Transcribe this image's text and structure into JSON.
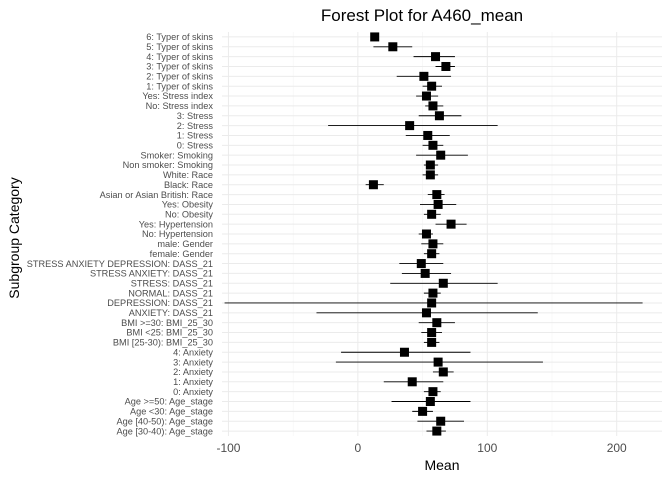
{
  "chart_data": {
    "type": "scatter",
    "subtype": "forest-plot",
    "title": "Forest Plot for A460_mean",
    "xlabel": "Mean",
    "ylabel": "Subgroup Category",
    "xlim": [
      -105,
      235
    ],
    "xticks": [
      -100,
      0,
      100,
      200
    ],
    "grid": true,
    "legend": "none",
    "marker_color": "#000000",
    "rows": [
      {
        "label": "6: Typer of skins",
        "mean": 13,
        "lower": 11,
        "upper": 16
      },
      {
        "label": "5: Typer of skins",
        "mean": 27,
        "lower": 12,
        "upper": 42
      },
      {
        "label": "4: Typer of skins",
        "mean": 60,
        "lower": 43,
        "upper": 75
      },
      {
        "label": "3: Typer of skins",
        "mean": 68,
        "lower": 60,
        "upper": 75
      },
      {
        "label": "2: Typer of skins",
        "mean": 51,
        "lower": 30,
        "upper": 72
      },
      {
        "label": "1: Typer of skins",
        "mean": 57,
        "lower": 50,
        "upper": 65
      },
      {
        "label": "Yes: Stress index",
        "mean": 53,
        "lower": 45,
        "upper": 62
      },
      {
        "label": "No: Stress index",
        "mean": 58,
        "lower": 52,
        "upper": 66
      },
      {
        "label": "3: Stress",
        "mean": 63,
        "lower": 47,
        "upper": 80
      },
      {
        "label": "2: Stress",
        "mean": 40,
        "lower": -23,
        "upper": 108
      },
      {
        "label": "1: Stress",
        "mean": 54,
        "lower": 37,
        "upper": 71
      },
      {
        "label": "0: Stress",
        "mean": 58,
        "lower": 50,
        "upper": 66
      },
      {
        "label": "Smoker: Smoking",
        "mean": 64,
        "lower": 45,
        "upper": 85
      },
      {
        "label": "Non smoker: Smoking",
        "mean": 56,
        "lower": 51,
        "upper": 62
      },
      {
        "label": "White: Race",
        "mean": 56,
        "lower": 50,
        "upper": 62
      },
      {
        "label": "Black: Race",
        "mean": 12,
        "lower": 6,
        "upper": 20
      },
      {
        "label": "Asian or Asian British: Race",
        "mean": 61,
        "lower": 54,
        "upper": 67
      },
      {
        "label": "Yes: Obesity",
        "mean": 62,
        "lower": 48,
        "upper": 76
      },
      {
        "label": "No: Obesity",
        "mean": 57,
        "lower": 51,
        "upper": 64
      },
      {
        "label": "Yes: Hypertension",
        "mean": 72,
        "lower": 60,
        "upper": 84
      },
      {
        "label": "No: Hypertension",
        "mean": 53,
        "lower": 47,
        "upper": 58
      },
      {
        "label": "male: Gender",
        "mean": 58,
        "lower": 49,
        "upper": 66
      },
      {
        "label": "female: Gender",
        "mean": 57,
        "lower": 51,
        "upper": 63
      },
      {
        "label": "STRESS ANXIETY DEPRESSION: DASS_21",
        "mean": 49,
        "lower": 32,
        "upper": 66
      },
      {
        "label": "STRESS ANXIETY: DASS_21",
        "mean": 52,
        "lower": 34,
        "upper": 72
      },
      {
        "label": "STRESS: DASS_21",
        "mean": 66,
        "lower": 25,
        "upper": 108
      },
      {
        "label": "NORMAL: DASS_21",
        "mean": 58,
        "lower": 51,
        "upper": 64
      },
      {
        "label": "DEPRESSION: DASS_21",
        "mean": 57,
        "lower": -103,
        "upper": 220
      },
      {
        "label": "ANXIETY: DASS_21",
        "mean": 53,
        "lower": -32,
        "upper": 139
      },
      {
        "label": "BMI >=30: BMI_25_30",
        "mean": 61,
        "lower": 47,
        "upper": 75
      },
      {
        "label": "BMI <25: BMI_25_30",
        "mean": 57,
        "lower": 49,
        "upper": 65
      },
      {
        "label": "BMI [25-30): BMI_25_30",
        "mean": 57,
        "lower": 51,
        "upper": 63
      },
      {
        "label": "4: Anxiety",
        "mean": 36,
        "lower": -13,
        "upper": 87
      },
      {
        "label": "3: Anxiety",
        "mean": 62,
        "lower": -17,
        "upper": 143
      },
      {
        "label": "2: Anxiety",
        "mean": 66,
        "lower": 58,
        "upper": 74
      },
      {
        "label": "1: Anxiety",
        "mean": 42,
        "lower": 20,
        "upper": 66
      },
      {
        "label": "0: Anxiety",
        "mean": 58,
        "lower": 51,
        "upper": 64
      },
      {
        "label": "Age >=50: Age_stage",
        "mean": 56,
        "lower": 26,
        "upper": 87
      },
      {
        "label": "Age <30: Age_stage",
        "mean": 50,
        "lower": 42,
        "upper": 58
      },
      {
        "label": "Age [40-50): Age_stage",
        "mean": 64,
        "lower": 46,
        "upper": 82
      },
      {
        "label": "Age [30-40): Age_stage",
        "mean": 61,
        "lower": 53,
        "upper": 68
      }
    ]
  }
}
